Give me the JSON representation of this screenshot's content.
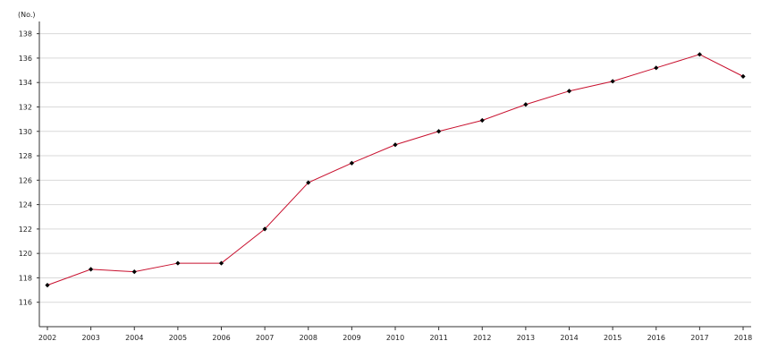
{
  "chart_data": {
    "type": "line",
    "title": "",
    "xlabel": "",
    "ylabel": "",
    "y_unit": "(No.)",
    "x": [
      "2002",
      "2003",
      "2004",
      "2005",
      "2006",
      "2007",
      "2008",
      "2009",
      "2010",
      "2011",
      "2012",
      "2013",
      "2014",
      "2015",
      "2016",
      "2017",
      "2018"
    ],
    "series": [
      {
        "values": [
          117.4,
          118.7,
          118.5,
          119.2,
          119.2,
          122.0,
          125.8,
          127.4,
          128.9,
          130.0,
          130.9,
          132.2,
          133.3,
          134.1,
          135.2,
          136.3,
          134.5
        ],
        "line_color": "#c8102e",
        "marker_color": "#000000",
        "marker": "diamond"
      }
    ],
    "ylim": [
      114,
      139
    ],
    "yticks": [
      116,
      118,
      120,
      122,
      124,
      126,
      128,
      130,
      132,
      134,
      136,
      138
    ],
    "grid": true,
    "legend": "none"
  }
}
